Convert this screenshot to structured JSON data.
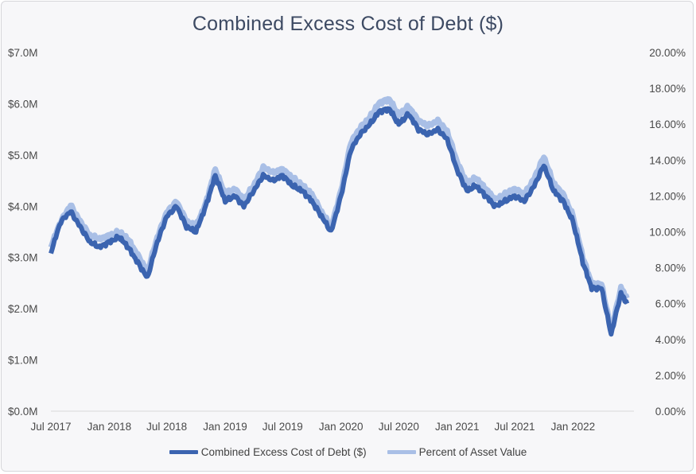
{
  "chart_data": {
    "type": "line",
    "title": "Combined Excess Cost of Debt ($)",
    "x_tick_labels": [
      "Jul 2017",
      "Jan 2018",
      "Jul 2018",
      "Jan 2019",
      "Jul 2019",
      "Jan 2020",
      "Jul 2020",
      "Jan 2021",
      "Jul 2021",
      "Jan 2022"
    ],
    "y_left": {
      "ticks": [
        "$0.0M",
        "$1.0M",
        "$2.0M",
        "$3.0M",
        "$4.0M",
        "$5.0M",
        "$6.0M",
        "$7.0M"
      ],
      "min": 0,
      "max": 7.0,
      "unit": "$M"
    },
    "y_right": {
      "ticks": [
        "0.00%",
        "2.00%",
        "4.00%",
        "6.00%",
        "8.00%",
        "10.00%",
        "12.00%",
        "14.00%",
        "16.00%",
        "18.00%",
        "20.00%"
      ],
      "min": 0,
      "max": 20
    },
    "grid": false,
    "legend_position": "bottom",
    "series": [
      {
        "name": "Combined Excess Cost of Debt ($)",
        "axis": "left",
        "color": "#3b64b0",
        "points": [
          [
            "2017-07-01",
            3.1
          ],
          [
            "2017-08-01",
            3.7
          ],
          [
            "2017-09-01",
            3.9
          ],
          [
            "2017-10-01",
            3.6
          ],
          [
            "2017-11-01",
            3.3
          ],
          [
            "2017-12-01",
            3.2
          ],
          [
            "2018-01-01",
            3.3
          ],
          [
            "2018-02-01",
            3.4
          ],
          [
            "2018-03-01",
            3.2
          ],
          [
            "2018-04-01",
            2.9
          ],
          [
            "2018-05-01",
            2.6
          ],
          [
            "2018-06-01",
            3.3
          ],
          [
            "2018-07-01",
            3.8
          ],
          [
            "2018-08-01",
            4.0
          ],
          [
            "2018-09-01",
            3.6
          ],
          [
            "2018-10-01",
            3.5
          ],
          [
            "2018-11-01",
            4.0
          ],
          [
            "2018-12-01",
            4.6
          ],
          [
            "2019-01-01",
            4.1
          ],
          [
            "2019-02-01",
            4.2
          ],
          [
            "2019-03-01",
            4.0
          ],
          [
            "2019-04-01",
            4.3
          ],
          [
            "2019-05-01",
            4.6
          ],
          [
            "2019-06-01",
            4.5
          ],
          [
            "2019-07-01",
            4.6
          ],
          [
            "2019-08-01",
            4.4
          ],
          [
            "2019-09-01",
            4.3
          ],
          [
            "2019-10-01",
            4.1
          ],
          [
            "2019-11-01",
            3.8
          ],
          [
            "2019-12-01",
            3.5
          ],
          [
            "2020-01-01",
            4.2
          ],
          [
            "2020-02-01",
            5.1
          ],
          [
            "2020-03-01",
            5.4
          ],
          [
            "2020-04-01",
            5.6
          ],
          [
            "2020-05-01",
            5.85
          ],
          [
            "2020-06-01",
            5.9
          ],
          [
            "2020-07-01",
            5.6
          ],
          [
            "2020-08-01",
            5.8
          ],
          [
            "2020-09-01",
            5.5
          ],
          [
            "2020-10-01",
            5.4
          ],
          [
            "2020-11-01",
            5.5
          ],
          [
            "2020-12-01",
            5.3
          ],
          [
            "2021-01-01",
            4.7
          ],
          [
            "2021-02-01",
            4.3
          ],
          [
            "2021-03-01",
            4.4
          ],
          [
            "2021-04-01",
            4.2
          ],
          [
            "2021-05-01",
            4.0
          ],
          [
            "2021-06-01",
            4.1
          ],
          [
            "2021-07-01",
            4.2
          ],
          [
            "2021-08-01",
            4.1
          ],
          [
            "2021-09-01",
            4.4
          ],
          [
            "2021-10-01",
            4.8
          ],
          [
            "2021-11-01",
            4.3
          ],
          [
            "2021-12-01",
            4.1
          ],
          [
            "2022-01-01",
            3.7
          ],
          [
            "2022-02-01",
            2.9
          ],
          [
            "2022-03-01",
            2.4
          ],
          [
            "2022-04-01",
            2.4
          ],
          [
            "2022-05-01",
            1.5
          ],
          [
            "2022-06-01",
            2.3
          ],
          [
            "2022-06-20",
            2.1
          ]
        ]
      },
      {
        "name": "Percent of Asset Value",
        "axis": "right",
        "color": "#a9bfe6",
        "points": [
          [
            "2017-07-01",
            9.2
          ],
          [
            "2017-08-01",
            10.6
          ],
          [
            "2017-09-01",
            11.5
          ],
          [
            "2017-10-01",
            10.6
          ],
          [
            "2017-11-01",
            9.8
          ],
          [
            "2017-12-01",
            9.6
          ],
          [
            "2018-01-01",
            9.8
          ],
          [
            "2018-02-01",
            10.0
          ],
          [
            "2018-03-01",
            9.6
          ],
          [
            "2018-04-01",
            8.7
          ],
          [
            "2018-05-01",
            7.8
          ],
          [
            "2018-06-01",
            9.7
          ],
          [
            "2018-07-01",
            11.1
          ],
          [
            "2018-08-01",
            11.7
          ],
          [
            "2018-09-01",
            10.6
          ],
          [
            "2018-10-01",
            10.3
          ],
          [
            "2018-11-01",
            11.6
          ],
          [
            "2018-12-01",
            13.5
          ],
          [
            "2019-01-01",
            12.1
          ],
          [
            "2019-02-01",
            12.4
          ],
          [
            "2019-03-01",
            11.8
          ],
          [
            "2019-04-01",
            12.6
          ],
          [
            "2019-05-01",
            13.6
          ],
          [
            "2019-06-01",
            13.3
          ],
          [
            "2019-07-01",
            13.5
          ],
          [
            "2019-08-01",
            13.0
          ],
          [
            "2019-09-01",
            12.6
          ],
          [
            "2019-10-01",
            12.1
          ],
          [
            "2019-11-01",
            11.1
          ],
          [
            "2019-12-01",
            10.3
          ],
          [
            "2020-01-01",
            12.3
          ],
          [
            "2020-02-01",
            15.0
          ],
          [
            "2020-03-01",
            15.8
          ],
          [
            "2020-04-01",
            16.4
          ],
          [
            "2020-05-01",
            17.2
          ],
          [
            "2020-06-01",
            17.4
          ],
          [
            "2020-07-01",
            16.5
          ],
          [
            "2020-08-01",
            17.0
          ],
          [
            "2020-09-01",
            16.2
          ],
          [
            "2020-10-01",
            15.9
          ],
          [
            "2020-11-01",
            16.2
          ],
          [
            "2020-12-01",
            15.6
          ],
          [
            "2021-01-01",
            13.9
          ],
          [
            "2021-02-01",
            12.7
          ],
          [
            "2021-03-01",
            13.0
          ],
          [
            "2021-04-01",
            12.4
          ],
          [
            "2021-05-01",
            11.8
          ],
          [
            "2021-06-01",
            12.1
          ],
          [
            "2021-07-01",
            12.4
          ],
          [
            "2021-08-01",
            12.1
          ],
          [
            "2021-09-01",
            13.0
          ],
          [
            "2021-10-01",
            14.2
          ],
          [
            "2021-11-01",
            12.7
          ],
          [
            "2021-12-01",
            12.1
          ],
          [
            "2022-01-01",
            10.9
          ],
          [
            "2022-02-01",
            8.6
          ],
          [
            "2022-03-01",
            7.1
          ],
          [
            "2022-04-01",
            7.1
          ],
          [
            "2022-05-01",
            4.5
          ],
          [
            "2022-06-01",
            6.9
          ],
          [
            "2022-06-20",
            6.3
          ]
        ]
      }
    ]
  }
}
